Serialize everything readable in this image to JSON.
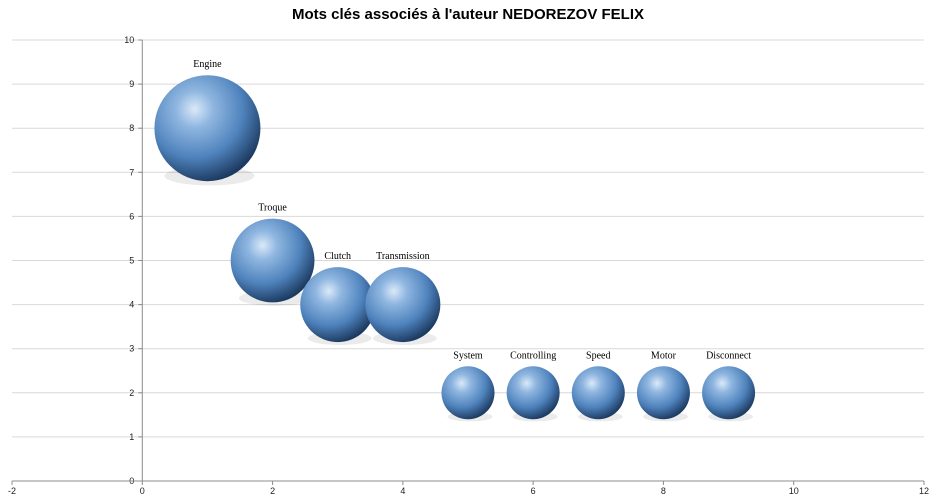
{
  "chart_data": {
    "type": "scatter",
    "title": "Mots clés associés à l'auteur NEDOREZOV FELIX",
    "xlim": [
      -2,
      12
    ],
    "ylim": [
      0,
      10
    ],
    "x_ticks": [
      -2,
      0,
      2,
      4,
      6,
      8,
      10,
      12
    ],
    "y_ticks": [
      0,
      1,
      2,
      3,
      4,
      5,
      6,
      7,
      8,
      9,
      10
    ],
    "grid": true,
    "points": [
      {
        "label": "Engine",
        "x": 1,
        "y": 8,
        "size": 8
      },
      {
        "label": "Troque",
        "x": 2,
        "y": 5,
        "size": 5
      },
      {
        "label": "Clutch",
        "x": 3,
        "y": 4,
        "size": 4
      },
      {
        "label": "Transmission",
        "x": 4,
        "y": 4,
        "size": 4
      },
      {
        "label": "System",
        "x": 5,
        "y": 2,
        "size": 2
      },
      {
        "label": "Controlling",
        "x": 6,
        "y": 2,
        "size": 2
      },
      {
        "label": "Speed",
        "x": 7,
        "y": 2,
        "size": 2
      },
      {
        "label": "Motor",
        "x": 8,
        "y": 2,
        "size": 2
      },
      {
        "label": "Disconnect",
        "x": 9,
        "y": 2,
        "size": 2
      }
    ],
    "colors": {
      "bubble_light": "#d6e6f7",
      "bubble_mid": "#5b8fc7",
      "bubble_dark": "#1e3d63",
      "grid": "#d9d9d9",
      "axis": "#8c8c8c"
    }
  }
}
